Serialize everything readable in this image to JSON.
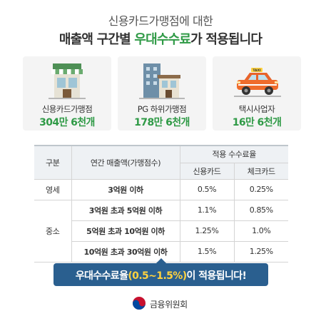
{
  "header": {
    "line1": "신용카드가맹점에 대한",
    "line2_pre": "매출액 구간별 ",
    "line2_highlight": "우대수수료",
    "line2_post": "가 적용됩니다"
  },
  "cards": [
    {
      "icon": "storefront-icon",
      "label": "신용카드가맹점",
      "count": "304만 6천개"
    },
    {
      "icon": "buildings-icon",
      "label": "PG 하위가맹점",
      "count": "178만 6천개"
    },
    {
      "icon": "taxi-icon",
      "label": "택시사업자",
      "count": "16만 6천개",
      "sign": "TAXI"
    }
  ],
  "table": {
    "col_category": "구분",
    "col_sales": "연간 매출액(가맹점수)",
    "col_fee_group": "적용 수수료율",
    "col_credit": "신용카드",
    "col_check": "체크카드",
    "group_small": "영세",
    "group_medium": "중소",
    "rows": [
      {
        "sales": "3억원 이하",
        "credit": "0.5%",
        "check": "0.25%"
      },
      {
        "sales": "3억원 초과 5억원 이하",
        "credit": "1.1%",
        "check": "0.85%"
      },
      {
        "sales": "5억원 초과 10억원 이하",
        "credit": "1.25%",
        "check": "1.0%"
      },
      {
        "sales": "10억원 초과 30억원 이하",
        "credit": "1.5%",
        "check": "1.25%"
      }
    ]
  },
  "banner": {
    "pre": "우대수수료율",
    "highlight": "(0.5~1.5%)",
    "post": "이 적용됩니다!"
  },
  "footer": {
    "org": "금융위원회",
    "emblem_icon": "taegeuk-emblem-icon"
  },
  "colors": {
    "green": "#2f9a46",
    "navy": "#2a5f8f",
    "yellow": "#ffd23f"
  }
}
